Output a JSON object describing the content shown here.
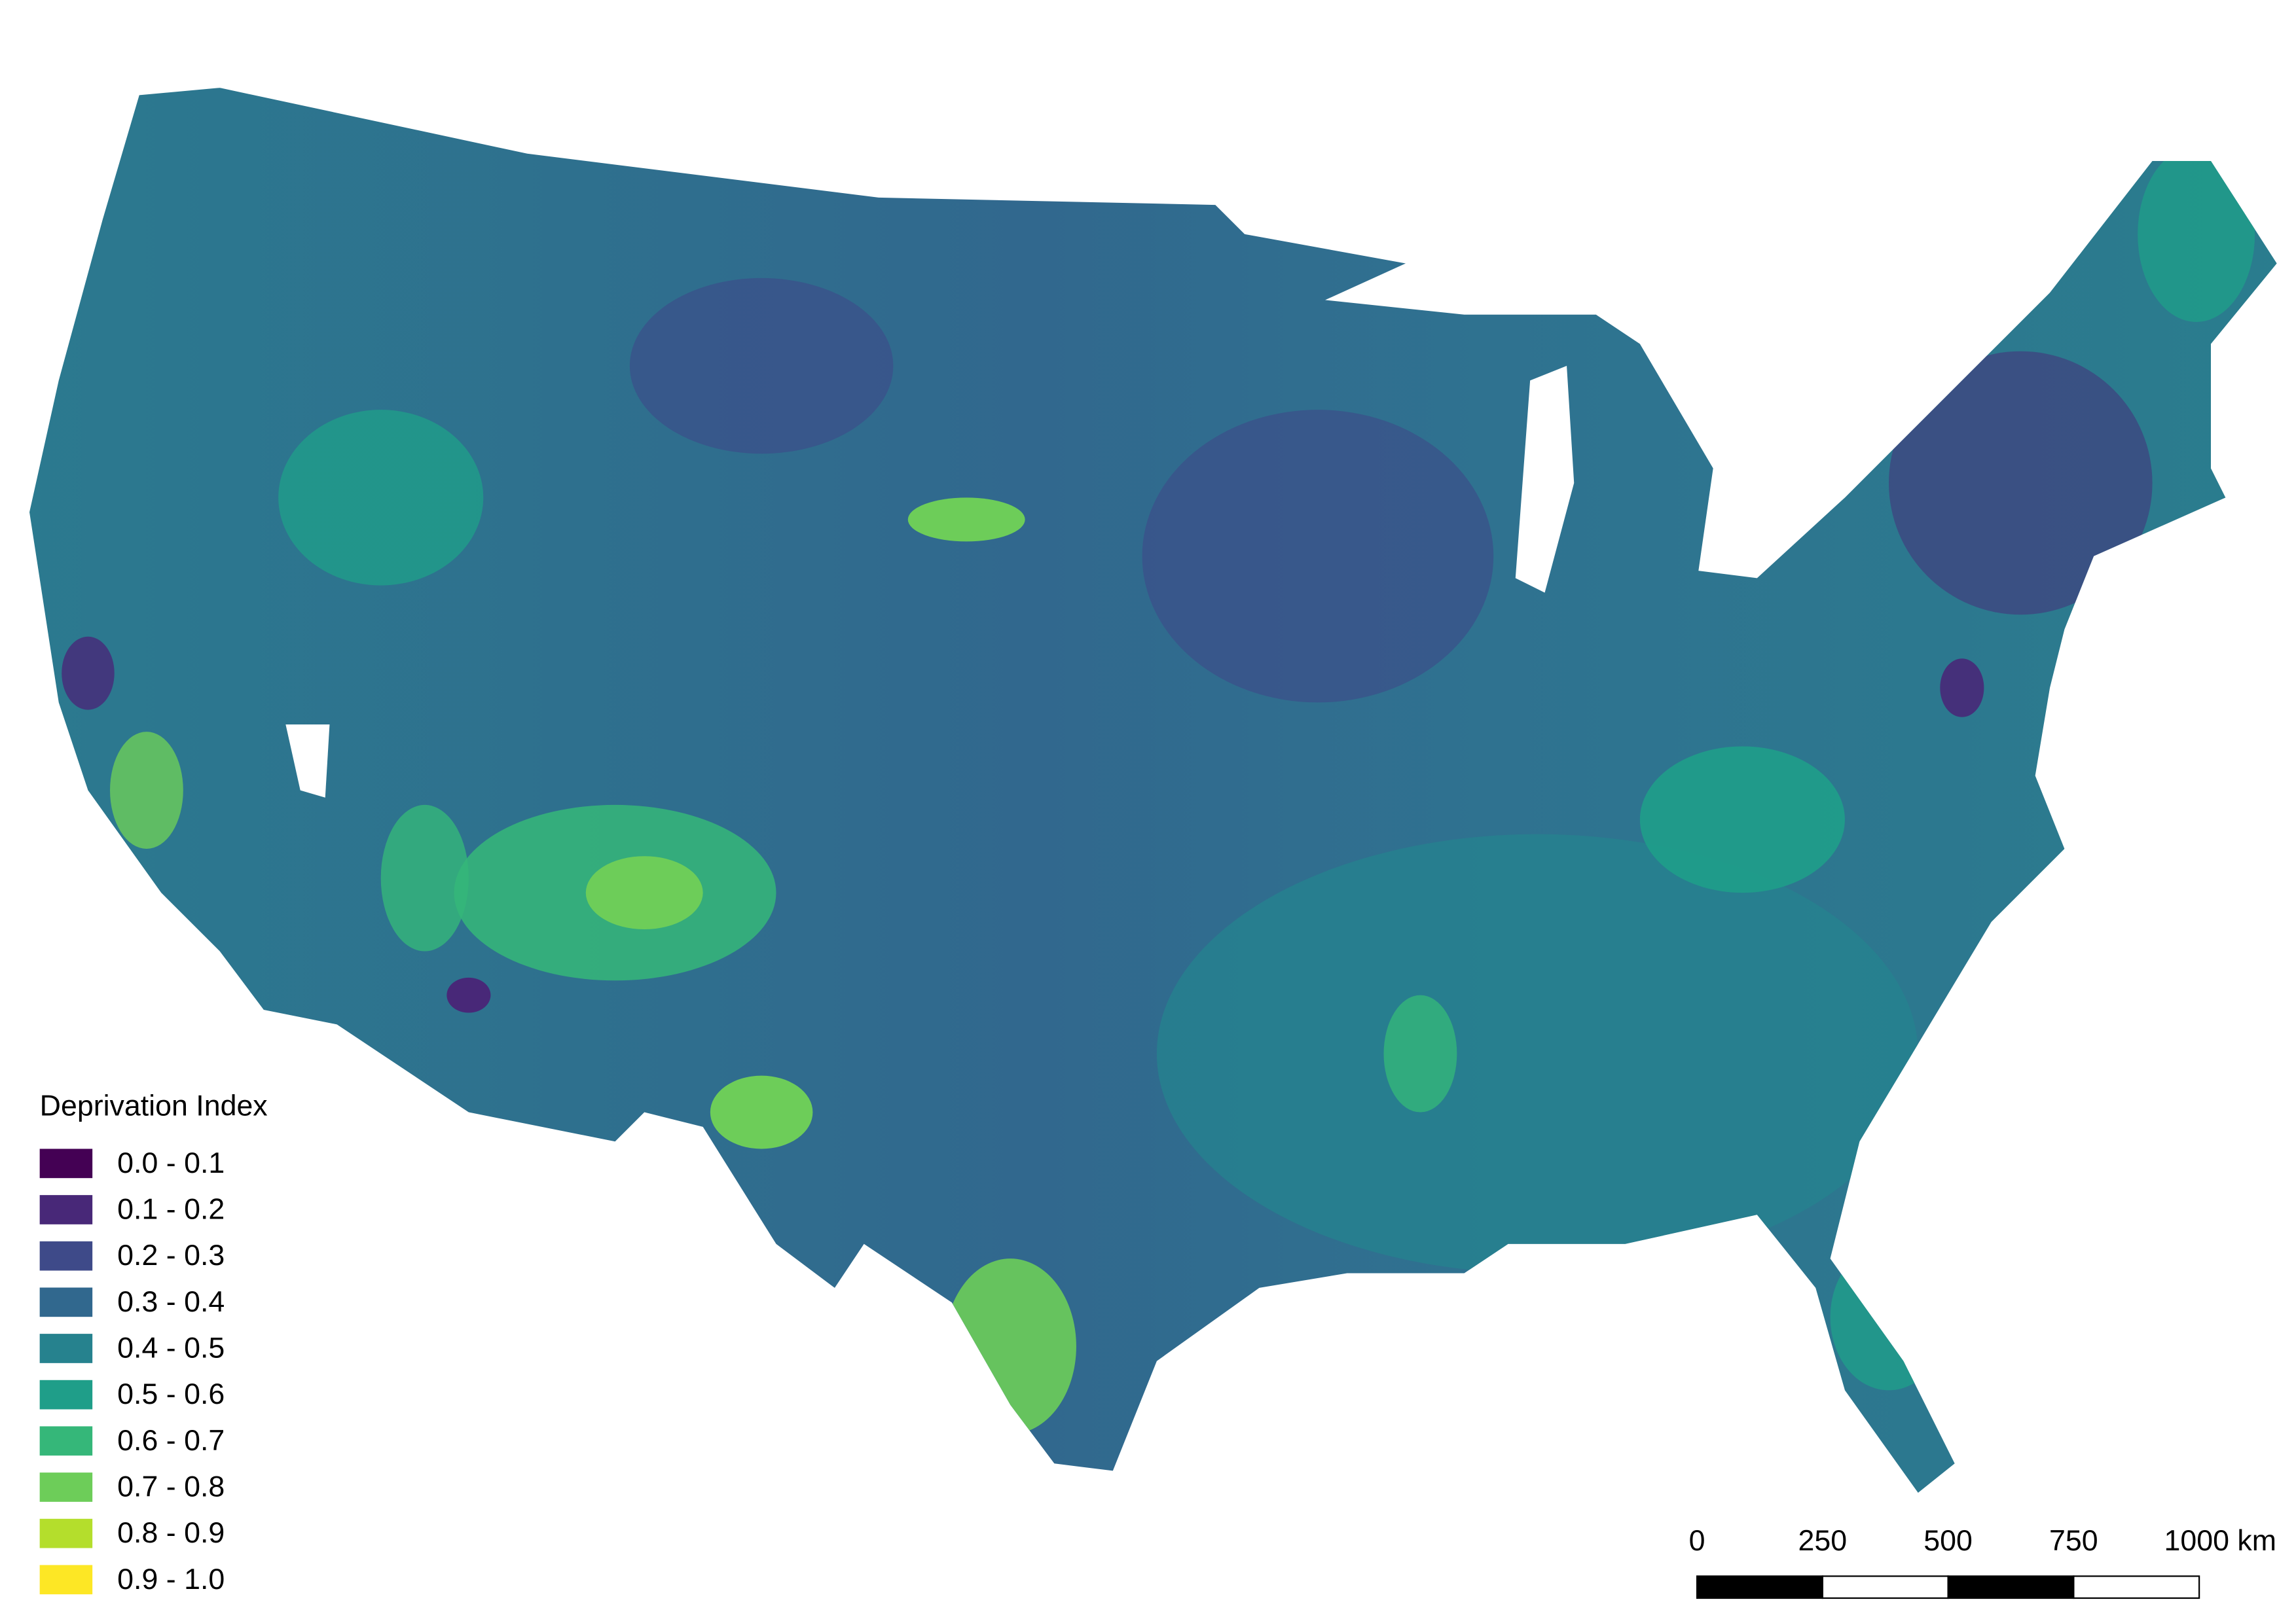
{
  "legend": {
    "title": "Deprivation Index",
    "items": [
      {
        "label": "0.0 - 0.1",
        "color": "#440154"
      },
      {
        "label": "0.1 - 0.2",
        "color": "#482878"
      },
      {
        "label": "0.2 - 0.3",
        "color": "#3e4a89"
      },
      {
        "label": "0.3 - 0.4",
        "color": "#31688e"
      },
      {
        "label": "0.4 - 0.5",
        "color": "#26828e"
      },
      {
        "label": "0.5 - 0.6",
        "color": "#1f9e89"
      },
      {
        "label": "0.6 - 0.7",
        "color": "#35b779"
      },
      {
        "label": "0.7 - 0.8",
        "color": "#6dcd59"
      },
      {
        "label": "0.8 - 0.9",
        "color": "#b4de2c"
      },
      {
        "label": "0.9 - 1.0",
        "color": "#fde725"
      }
    ]
  },
  "scale_bar": {
    "ticks": [
      0,
      250,
      500,
      750,
      {
        "value": 1000,
        "label": "1000 km"
      }
    ]
  }
}
